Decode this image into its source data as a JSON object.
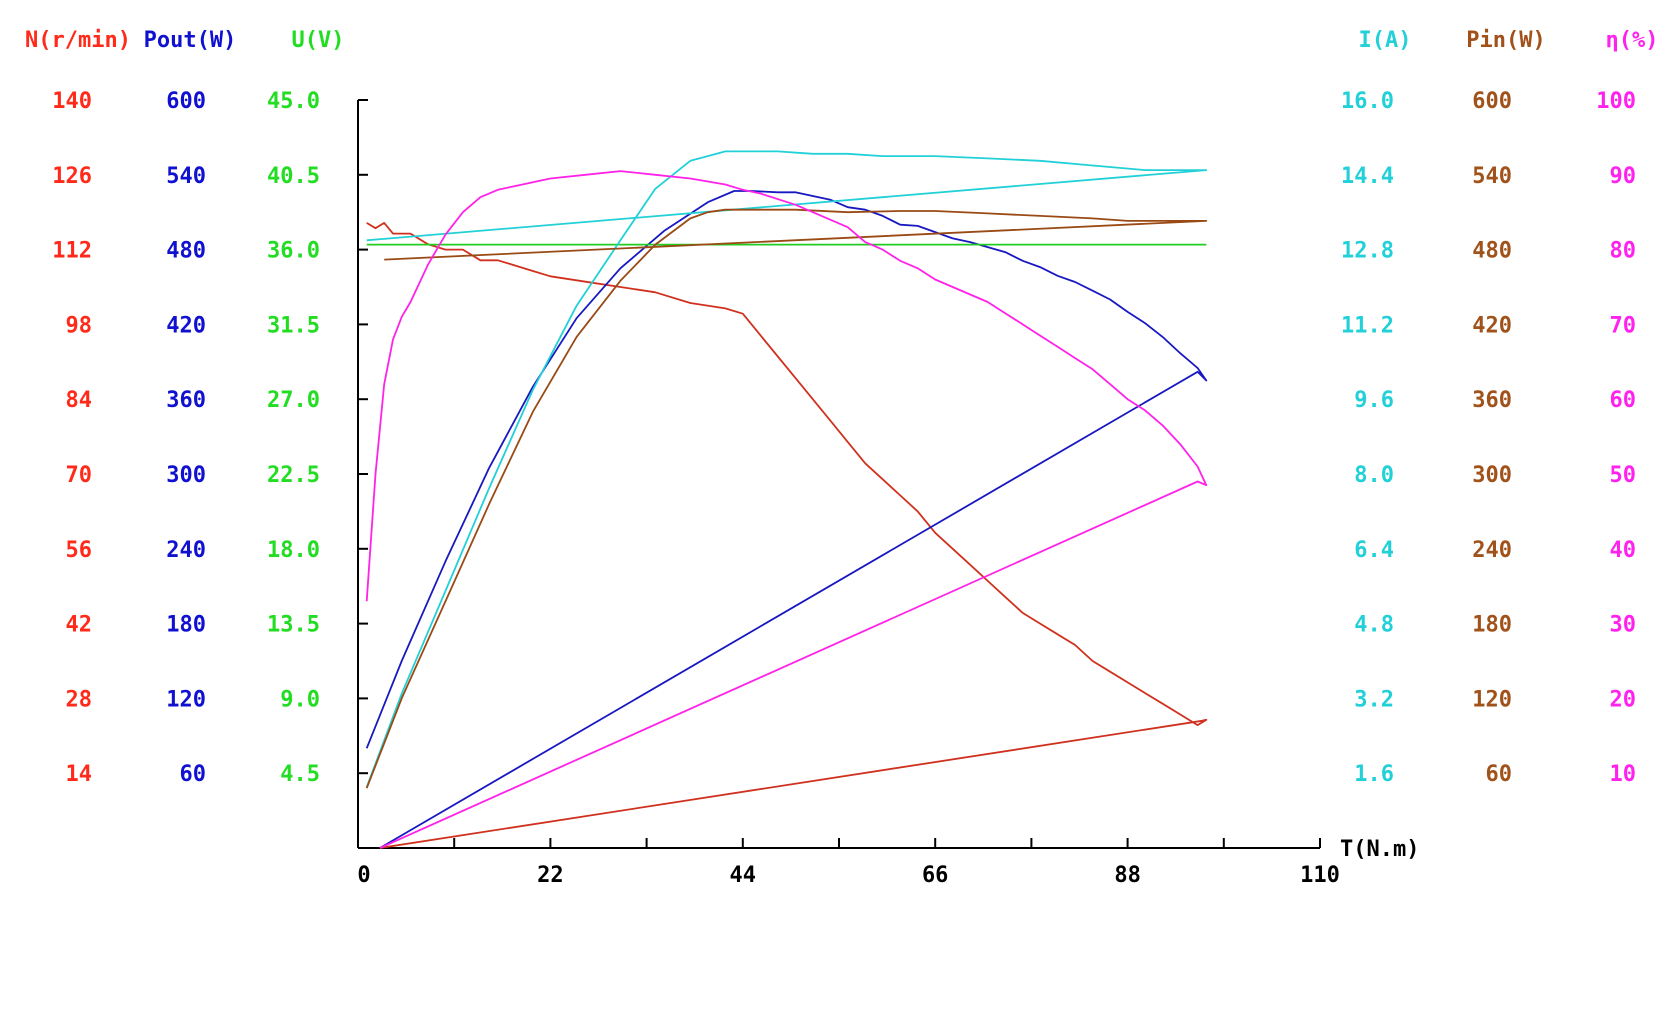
{
  "chart_data": {
    "type": "line",
    "x_axis": {
      "label": "T(N.m)",
      "min": 0,
      "max": 110,
      "ticks": [
        "0",
        "22",
        "44",
        "66",
        "88",
        "110"
      ],
      "minor_step": 11
    },
    "axes": [
      {
        "key": "N",
        "title": "N(r/min)",
        "color": "#ff2a1a",
        "side": "left",
        "min": 0,
        "max": 140,
        "ticks": [
          "14",
          "28",
          "42",
          "56",
          "70",
          "84",
          "98",
          "112",
          "126",
          "140"
        ]
      },
      {
        "key": "Pout",
        "title": "Pout(W)",
        "color": "#1010d0",
        "side": "left",
        "min": 0,
        "max": 600,
        "ticks": [
          "60",
          "120",
          "180",
          "240",
          "300",
          "360",
          "420",
          "480",
          "540",
          "600"
        ]
      },
      {
        "key": "U",
        "title": "U(V)",
        "color": "#22dd22",
        "side": "left",
        "min": 0,
        "max": 45,
        "ticks": [
          "4.5",
          "9.0",
          "13.5",
          "18.0",
          "22.5",
          "27.0",
          "31.5",
          "36.0",
          "40.5",
          "45.0"
        ]
      },
      {
        "key": "I",
        "title": "I(A)",
        "color": "#22d0d8",
        "side": "right",
        "min": 0,
        "max": 16,
        "ticks": [
          "1.6",
          "3.2",
          "4.8",
          "6.4",
          "8.0",
          "9.6",
          "11.2",
          "12.8",
          "14.4",
          "16.0"
        ]
      },
      {
        "key": "Pin",
        "title": "Pin(W)",
        "color": "#a0521a",
        "side": "right",
        "min": 0,
        "max": 600,
        "ticks": [
          "60",
          "120",
          "180",
          "240",
          "300",
          "360",
          "420",
          "480",
          "540",
          "600"
        ]
      },
      {
        "key": "Eff",
        "title": "η(%)",
        "color": "#ff22ee",
        "side": "right",
        "min": 0,
        "max": 100,
        "ticks": [
          "10",
          "20",
          "30",
          "40",
          "50",
          "60",
          "70",
          "80",
          "90",
          "100"
        ]
      }
    ],
    "series": [
      {
        "axis": "N",
        "color": "#d0311e",
        "points": [
          [
            1,
            117
          ],
          [
            2,
            116
          ],
          [
            3,
            117
          ],
          [
            4,
            115
          ],
          [
            6,
            115
          ],
          [
            8,
            113
          ],
          [
            10,
            112
          ],
          [
            12,
            112
          ],
          [
            14,
            110
          ],
          [
            16,
            110
          ],
          [
            18,
            109
          ],
          [
            20,
            108
          ],
          [
            22,
            107
          ],
          [
            26,
            106
          ],
          [
            30,
            105
          ],
          [
            34,
            104
          ],
          [
            38,
            102
          ],
          [
            42,
            101
          ],
          [
            44,
            100
          ],
          [
            46,
            96
          ],
          [
            48,
            92
          ],
          [
            50,
            88
          ],
          [
            52,
            84
          ],
          [
            54,
            80
          ],
          [
            56,
            76
          ],
          [
            58,
            72
          ],
          [
            60,
            69
          ],
          [
            62,
            66
          ],
          [
            64,
            63
          ],
          [
            66,
            59
          ],
          [
            68,
            56
          ],
          [
            70,
            53
          ],
          [
            72,
            50
          ],
          [
            74,
            47
          ],
          [
            76,
            44
          ],
          [
            78,
            42
          ],
          [
            80,
            40
          ],
          [
            82,
            38
          ],
          [
            84,
            35
          ],
          [
            86,
            33
          ],
          [
            88,
            31
          ],
          [
            90,
            29
          ],
          [
            92,
            27
          ],
          [
            94,
            25
          ],
          [
            96,
            23
          ],
          [
            97,
            24
          ],
          [
            96.5,
            23.8
          ],
          [
            2.5,
            0
          ]
        ]
      },
      {
        "axis": "Pout",
        "color": "#1818c0",
        "points": [
          [
            1,
            80
          ],
          [
            5,
            150
          ],
          [
            10,
            230
          ],
          [
            15,
            305
          ],
          [
            20,
            370
          ],
          [
            25,
            425
          ],
          [
            30,
            465
          ],
          [
            35,
            495
          ],
          [
            40,
            518
          ],
          [
            43,
            527
          ],
          [
            45,
            527
          ],
          [
            48,
            526
          ],
          [
            50,
            526
          ],
          [
            52,
            523
          ],
          [
            54,
            520
          ],
          [
            56,
            514
          ],
          [
            58,
            512
          ],
          [
            60,
            507
          ],
          [
            62,
            500
          ],
          [
            64,
            499
          ],
          [
            66,
            494
          ],
          [
            68,
            489
          ],
          [
            70,
            486
          ],
          [
            72,
            482
          ],
          [
            74,
            478
          ],
          [
            76,
            471
          ],
          [
            78,
            466
          ],
          [
            80,
            459
          ],
          [
            82,
            454
          ],
          [
            84,
            447
          ],
          [
            86,
            440
          ],
          [
            88,
            430
          ],
          [
            90,
            421
          ],
          [
            92,
            410
          ],
          [
            94,
            397
          ],
          [
            96,
            385
          ],
          [
            97,
            375
          ],
          [
            96,
            382
          ],
          [
            2.5,
            0
          ]
        ]
      },
      {
        "axis": "U",
        "color": "#22cc22",
        "points": [
          [
            1,
            36.3
          ],
          [
            97,
            36.3
          ]
        ]
      },
      {
        "axis": "I",
        "color": "#22d0d8",
        "points": [
          [
            1,
            1.3
          ],
          [
            5,
            3.3
          ],
          [
            10,
            5.5
          ],
          [
            15,
            7.7
          ],
          [
            20,
            9.8
          ],
          [
            25,
            11.6
          ],
          [
            30,
            13.0
          ],
          [
            34,
            14.1
          ],
          [
            38,
            14.7
          ],
          [
            40,
            14.8
          ],
          [
            42,
            14.9
          ],
          [
            44,
            14.9
          ],
          [
            46,
            14.9
          ],
          [
            48,
            14.9
          ],
          [
            52,
            14.85
          ],
          [
            56,
            14.85
          ],
          [
            60,
            14.8
          ],
          [
            66,
            14.8
          ],
          [
            72,
            14.75
          ],
          [
            78,
            14.7
          ],
          [
            84,
            14.6
          ],
          [
            90,
            14.5
          ],
          [
            97,
            14.5
          ],
          [
            1,
            13.0
          ]
        ]
      },
      {
        "axis": "Pin",
        "color": "#9a4a14",
        "points": [
          [
            1,
            48
          ],
          [
            5,
            120
          ],
          [
            10,
            198
          ],
          [
            15,
            276
          ],
          [
            20,
            350
          ],
          [
            25,
            410
          ],
          [
            30,
            455
          ],
          [
            34,
            484
          ],
          [
            38,
            505
          ],
          [
            40,
            510
          ],
          [
            42,
            512
          ],
          [
            44,
            512
          ],
          [
            46,
            512
          ],
          [
            50,
            512
          ],
          [
            56,
            510
          ],
          [
            62,
            511
          ],
          [
            66,
            511
          ],
          [
            72,
            509
          ],
          [
            78,
            507
          ],
          [
            84,
            505
          ],
          [
            88,
            503
          ],
          [
            92,
            503
          ],
          [
            97,
            503
          ],
          [
            3,
            472
          ]
        ]
      },
      {
        "axis": "Eff",
        "color": "#ff22e8",
        "points": [
          [
            1,
            33
          ],
          [
            2,
            50
          ],
          [
            3,
            62
          ],
          [
            4,
            68
          ],
          [
            5,
            71
          ],
          [
            6,
            73
          ],
          [
            8,
            78
          ],
          [
            10,
            82
          ],
          [
            12,
            85
          ],
          [
            14,
            87
          ],
          [
            16,
            88
          ],
          [
            18,
            88.5
          ],
          [
            20,
            89
          ],
          [
            22,
            89.5
          ],
          [
            26,
            90
          ],
          [
            30,
            90.5
          ],
          [
            34,
            90
          ],
          [
            38,
            89.5
          ],
          [
            42,
            88.7
          ],
          [
            44,
            88
          ],
          [
            46,
            87.5
          ],
          [
            50,
            86
          ],
          [
            54,
            84
          ],
          [
            56,
            83
          ],
          [
            58,
            81
          ],
          [
            60,
            80
          ],
          [
            62,
            78.5
          ],
          [
            64,
            77.5
          ],
          [
            66,
            76
          ],
          [
            68,
            75
          ],
          [
            70,
            74
          ],
          [
            72,
            73
          ],
          [
            74,
            71.5
          ],
          [
            76,
            70
          ],
          [
            78,
            68.5
          ],
          [
            80,
            67
          ],
          [
            82,
            65.5
          ],
          [
            84,
            64
          ],
          [
            86,
            62
          ],
          [
            88,
            60
          ],
          [
            90,
            58.5
          ],
          [
            92,
            56.5
          ],
          [
            94,
            54
          ],
          [
            96,
            51
          ],
          [
            97,
            48.5
          ],
          [
            96,
            49
          ],
          [
            2.5,
            0
          ]
        ]
      }
    ]
  }
}
